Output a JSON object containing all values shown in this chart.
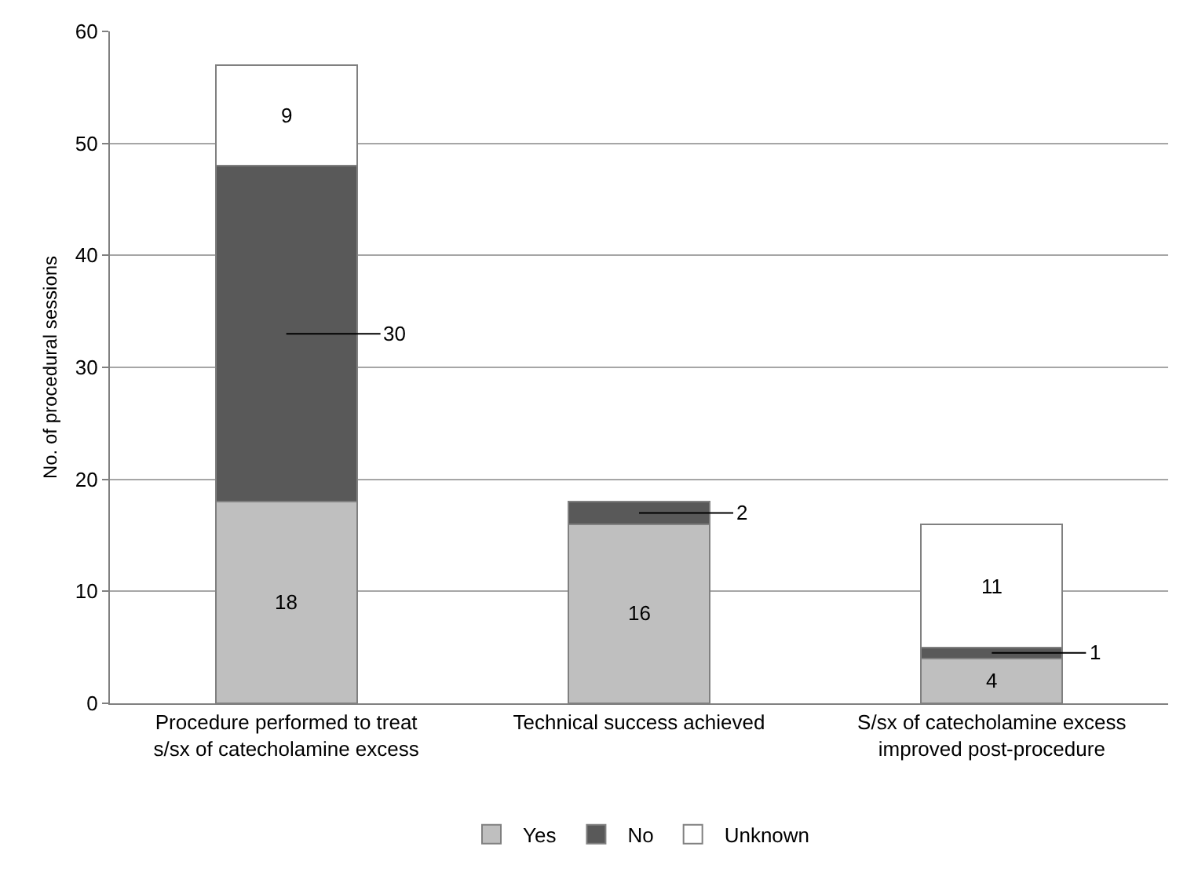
{
  "chart_data": {
    "type": "bar",
    "stacked": true,
    "ylabel": "No. of procedural sessions",
    "categories": [
      "Procedure performed to treat s/sx of catecholamine excess",
      "Technical success achieved",
      "S/sx of catecholamine excess improved post-procedure"
    ],
    "series": [
      {
        "name": "Yes",
        "color": "#bfbfbf",
        "values": [
          18,
          16,
          4
        ],
        "value_labels": [
          "18",
          "16",
          "4"
        ]
      },
      {
        "name": "No",
        "color": "#595959",
        "values": [
          30,
          2,
          1
        ],
        "value_labels": [
          "30",
          "2",
          "1"
        ]
      },
      {
        "name": "Unknown",
        "color": "#ffffff",
        "values": [
          9,
          0,
          11
        ],
        "value_labels": [
          "9",
          null,
          "11"
        ]
      }
    ],
    "ylim": [
      0,
      60
    ],
    "yticks": [
      0,
      10,
      20,
      30,
      40,
      50,
      60
    ],
    "grid": "y",
    "legend": "bottom"
  }
}
